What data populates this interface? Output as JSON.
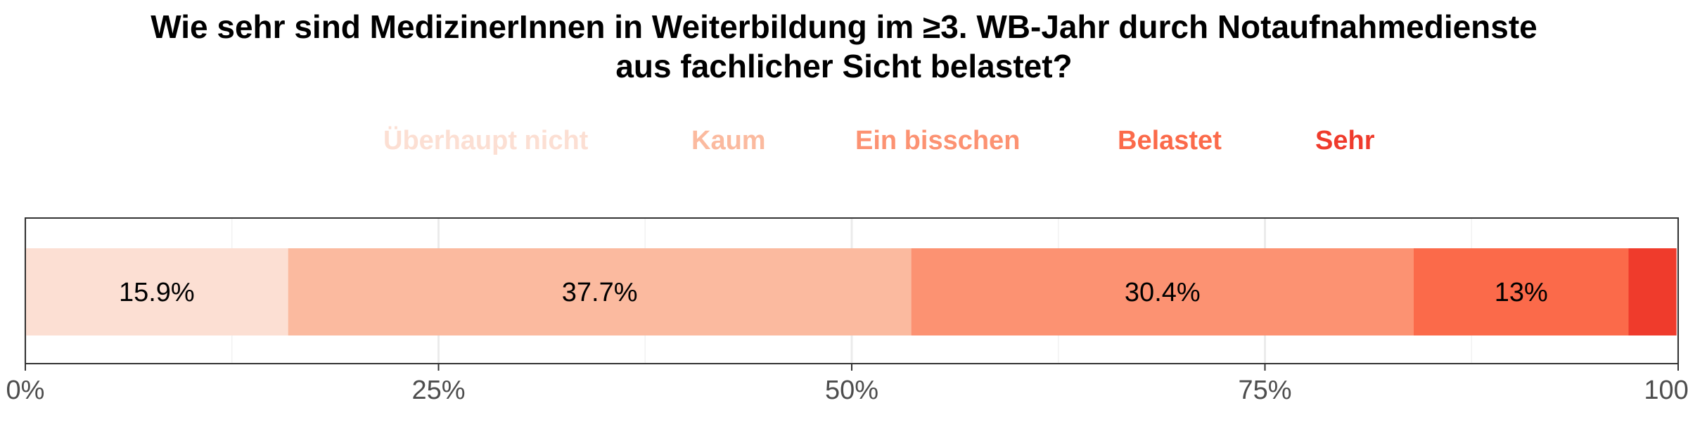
{
  "title": "Wie sehr sind MedizinerInnen in Weiterbildung im ≥3. WB-Jahr durch Notaufnahmedienste\naus fachlicher Sicht belastet?",
  "legend": [
    {
      "label": "Überhaupt nicht",
      "color": "#fcdfd3"
    },
    {
      "label": "Kaum",
      "color": "#fbba9f"
    },
    {
      "label": "Ein bisschen",
      "color": "#fc9272"
    },
    {
      "label": "Belastet",
      "color": "#fb6a4a"
    },
    {
      "label": "Sehr",
      "color": "#ef3b2c"
    }
  ],
  "chart_data": {
    "type": "bar",
    "orientation": "horizontal",
    "stacked": true,
    "title": "Wie sehr sind MedizinerInnen in Weiterbildung im ≥3. WB-Jahr durch Notaufnahmedienste aus fachlicher Sicht belastet?",
    "categories": [
      ""
    ],
    "series": [
      {
        "name": "Überhaupt nicht",
        "values": [
          15.9
        ],
        "label": "15.9%",
        "color": "#fcdfd3"
      },
      {
        "name": "Kaum",
        "values": [
          37.7
        ],
        "label": "37.7%",
        "color": "#fbba9f"
      },
      {
        "name": "Ein bisschen",
        "values": [
          30.4
        ],
        "label": "30.4%",
        "color": "#fc9272"
      },
      {
        "name": "Belastet",
        "values": [
          13.0
        ],
        "label": "13%",
        "color": "#fb6a4a"
      },
      {
        "name": "Sehr",
        "values": [
          2.9
        ],
        "label": "",
        "color": "#ef3b2c"
      }
    ],
    "xlim": [
      0,
      100
    ],
    "xticks": [
      0,
      25,
      50,
      75,
      100
    ],
    "xtick_labels": [
      "0%",
      "25%",
      "50%",
      "75%",
      "100%"
    ],
    "grid": true,
    "legend_position": "top"
  }
}
